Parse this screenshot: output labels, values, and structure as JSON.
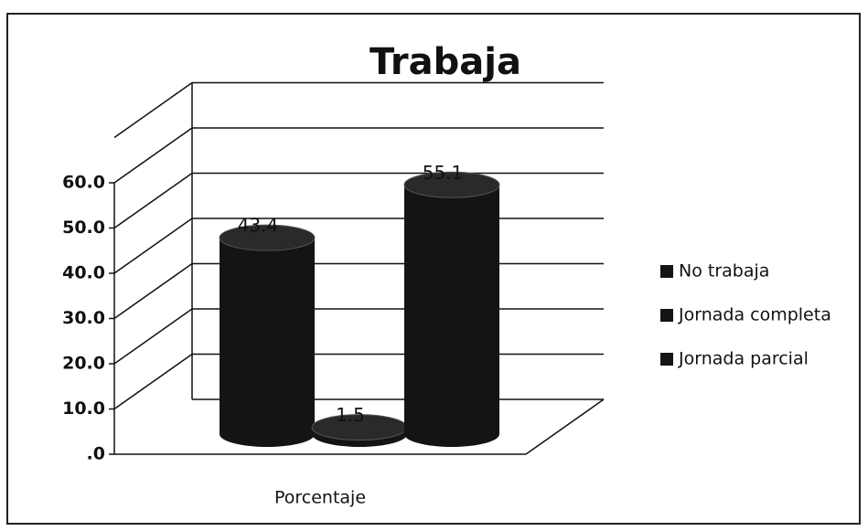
{
  "chart_data": {
    "type": "bar3d",
    "title": "Trabaja",
    "categories": [
      "Porcentaje"
    ],
    "series": [
      {
        "name": "No trabaja",
        "color": "#141414",
        "values": [
          43.4
        ]
      },
      {
        "name": "Jornada completa",
        "color": "#141414",
        "values": [
          1.5
        ]
      },
      {
        "name": "Jornada parcial",
        "color": "#141414",
        "values": [
          55.1
        ]
      }
    ],
    "ylim": [
      0,
      70
    ],
    "yticks": [
      {
        "value": 0,
        "label": ".0"
      },
      {
        "value": 10,
        "label": "10.0"
      },
      {
        "value": 20,
        "label": "20.0"
      },
      {
        "value": 30,
        "label": "30.0"
      },
      {
        "value": 40,
        "label": "40.0"
      },
      {
        "value": 50,
        "label": "50.0"
      },
      {
        "value": 60,
        "label": "60.0"
      }
    ],
    "grid": true,
    "legend": "right"
  }
}
